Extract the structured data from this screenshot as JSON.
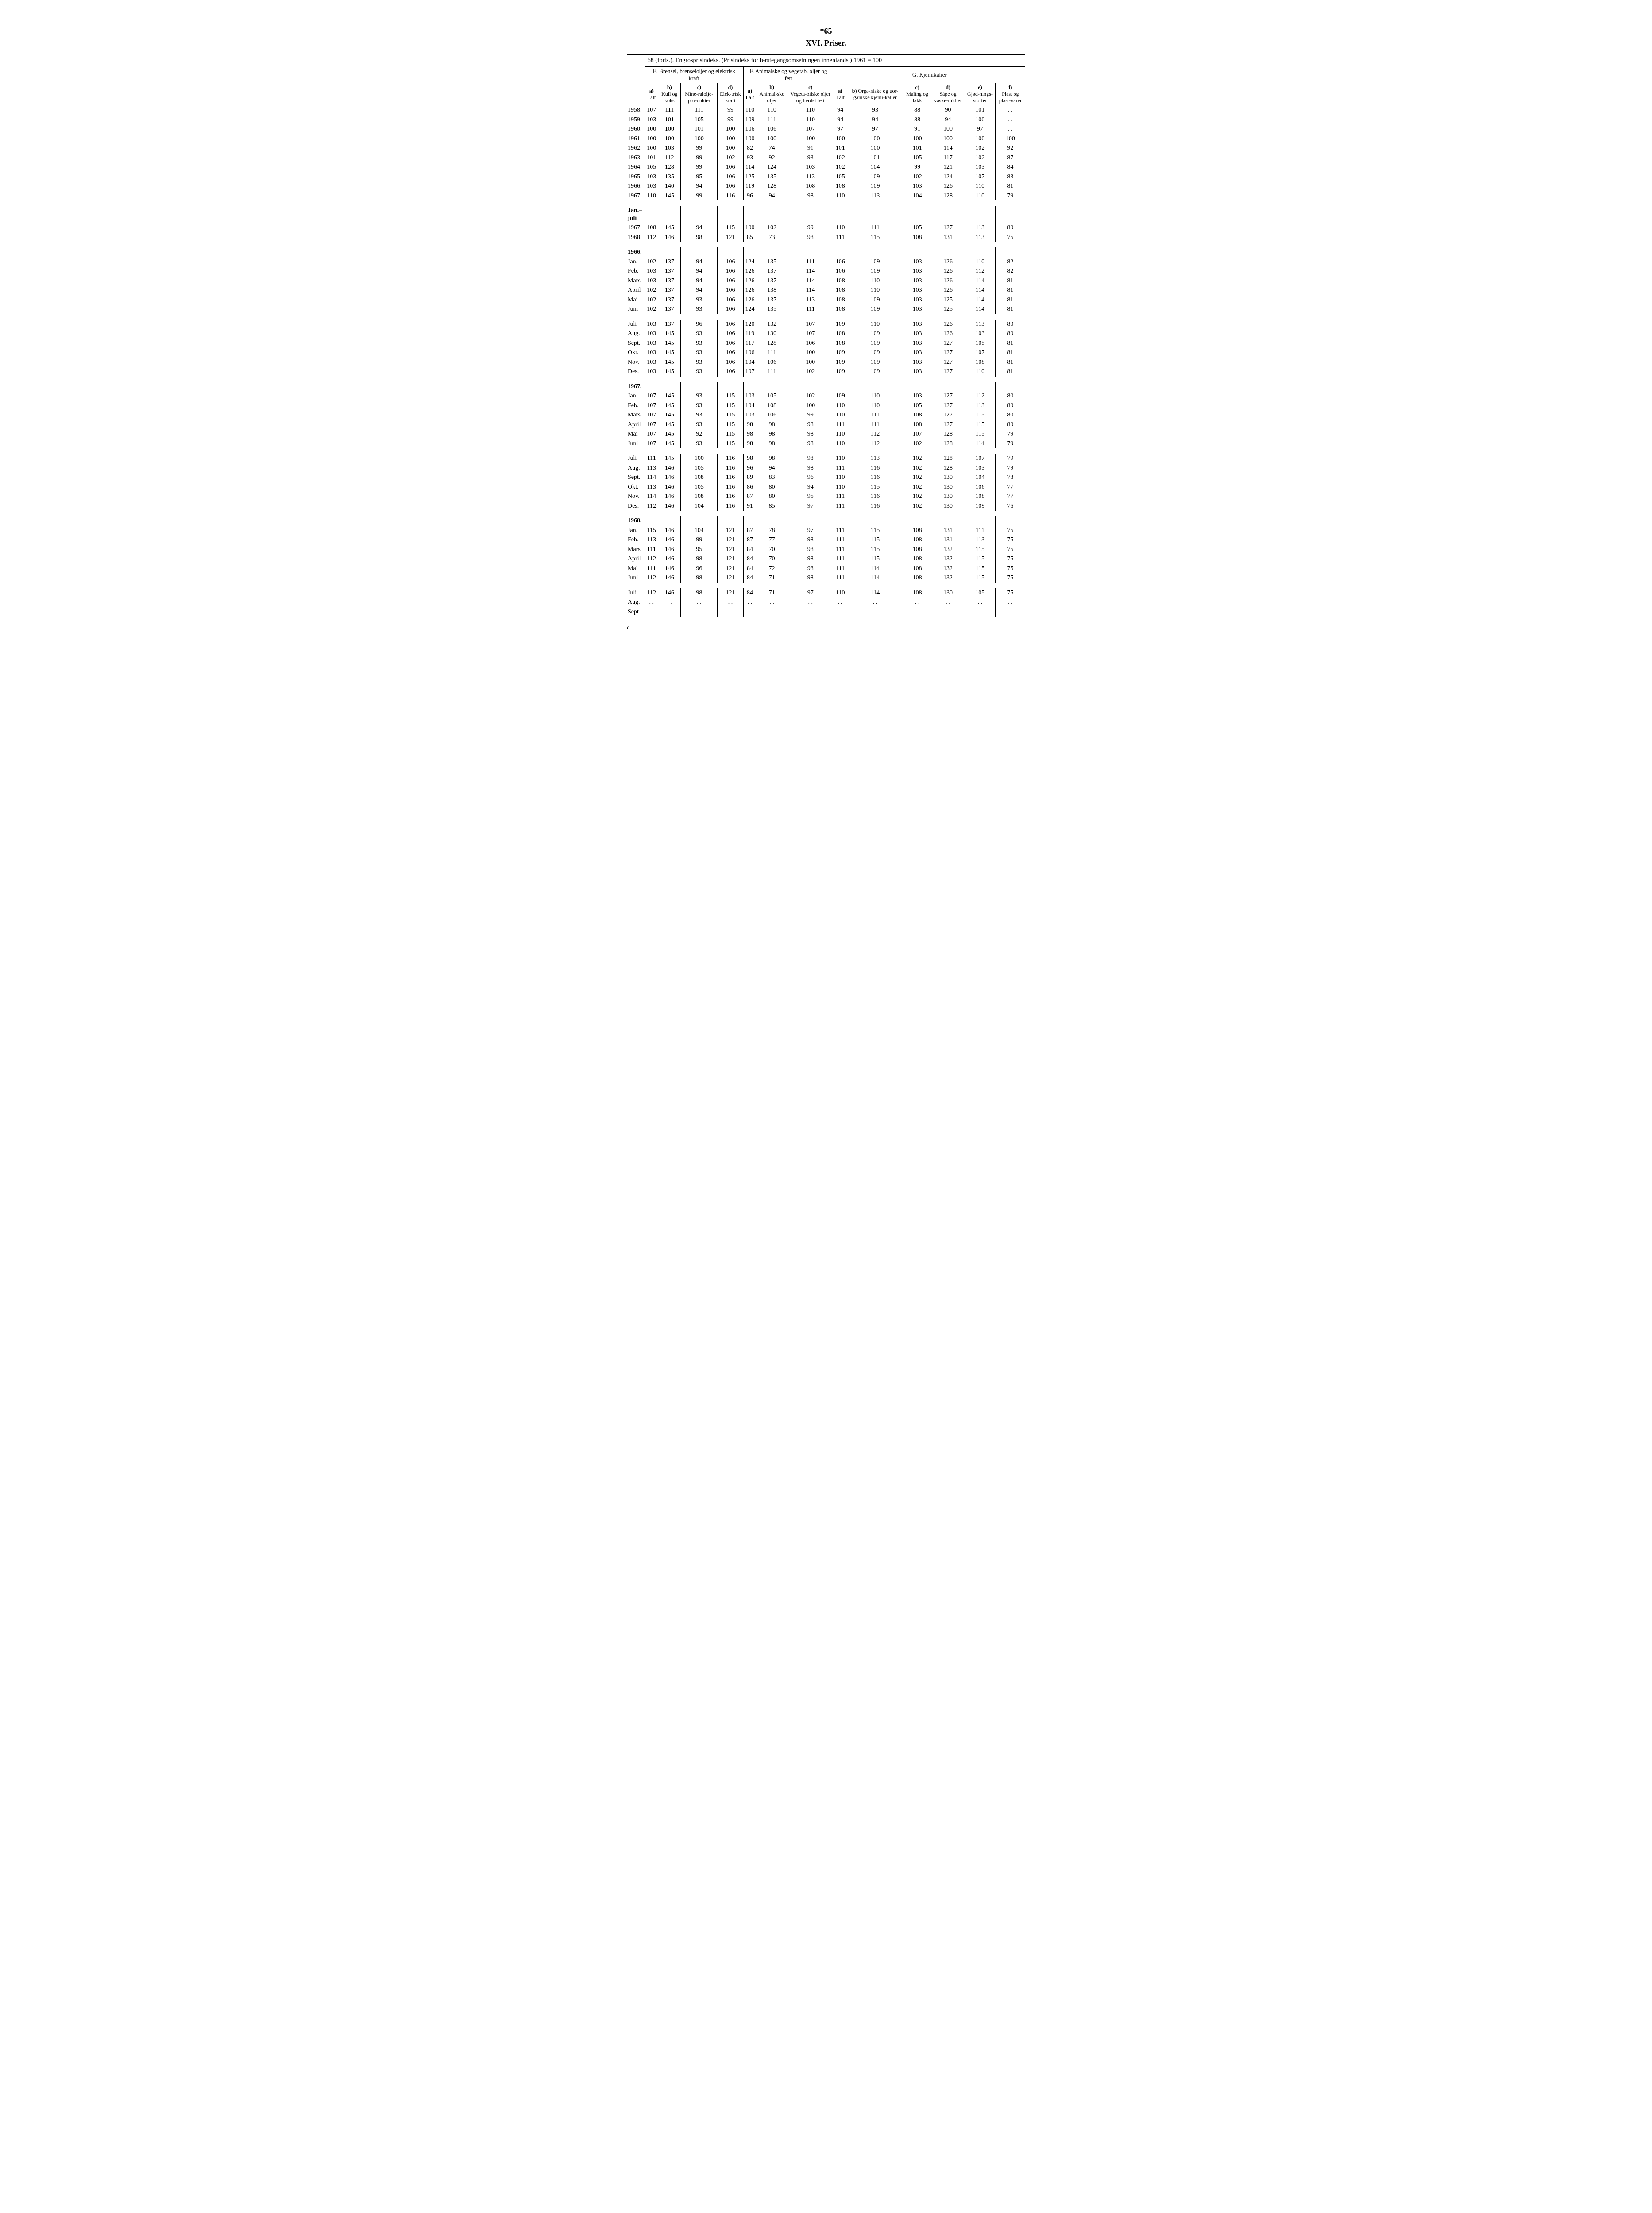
{
  "page_number": "*65",
  "title": "XVI. Priser.",
  "caption": "68 (forts.). Engrosprisindeks. (Prisindeks for førstegangsomsetningen innenlands.) 1961 = 100",
  "footer": "e",
  "groupE": {
    "title": "E. Brensel, brenseloljer og elektrisk kraft",
    "cols": {
      "a": "a)\nI alt",
      "b": "b)\nKull og koks",
      "c": "c)\nMine-ralolje-pro-dukter",
      "d": "d)\nElek-trisk kraft"
    }
  },
  "groupF": {
    "title": "F. Animalske og vegetab. oljer og fett",
    "cols": {
      "a": "a)\nI alt",
      "b": "b)\nAnimal-ske oljer",
      "c": "c)\nVegeta-bilske oljer og herdet fett"
    }
  },
  "groupG": {
    "title": "G. Kjemikalier",
    "cols": {
      "a": "a)\nI alt",
      "b": "b) Orga-niske og uor-ganiske kjemi-kalier",
      "c": "c)\nMaling og lakk",
      "d": "d)\nSåpe og vaske-midler",
      "e": "e)\nGjød-nings-stoffer",
      "f": "f)\nPlast og plast-varer"
    }
  },
  "sections": [
    {
      "year_header": null,
      "rows": [
        {
          "label": "1958.",
          "v": [
            "107",
            "111",
            "111",
            "99",
            "110",
            "110",
            "110",
            "94",
            "93",
            "88",
            "90",
            "101",
            ". ."
          ]
        },
        {
          "label": "1959.",
          "v": [
            "103",
            "101",
            "105",
            "99",
            "109",
            "111",
            "110",
            "94",
            "94",
            "88",
            "94",
            "100",
            ". ."
          ]
        },
        {
          "label": "1960.",
          "v": [
            "100",
            "100",
            "101",
            "100",
            "106",
            "106",
            "107",
            "97",
            "97",
            "91",
            "100",
            "97",
            ". ."
          ]
        },
        {
          "label": "1961.",
          "v": [
            "100",
            "100",
            "100",
            "100",
            "100",
            "100",
            "100",
            "100",
            "100",
            "100",
            "100",
            "100",
            "100"
          ]
        },
        {
          "label": "1962.",
          "v": [
            "100",
            "103",
            "99",
            "100",
            "82",
            "74",
            "91",
            "101",
            "100",
            "101",
            "114",
            "102",
            "92"
          ]
        },
        {
          "label": "1963.",
          "v": [
            "101",
            "112",
            "99",
            "102",
            "93",
            "92",
            "93",
            "102",
            "101",
            "105",
            "117",
            "102",
            "87"
          ]
        },
        {
          "label": "1964.",
          "v": [
            "105",
            "128",
            "99",
            "106",
            "114",
            "124",
            "103",
            "102",
            "104",
            "99",
            "121",
            "103",
            "84"
          ]
        },
        {
          "label": "1965.",
          "v": [
            "103",
            "135",
            "95",
            "106",
            "125",
            "135",
            "113",
            "105",
            "109",
            "102",
            "124",
            "107",
            "83"
          ]
        },
        {
          "label": "1966.",
          "v": [
            "103",
            "140",
            "94",
            "106",
            "119",
            "128",
            "108",
            "108",
            "109",
            "103",
            "126",
            "110",
            "81"
          ]
        },
        {
          "label": "1967.",
          "v": [
            "110",
            "145",
            "99",
            "116",
            "96",
            "94",
            "98",
            "110",
            "113",
            "104",
            "128",
            "110",
            "79"
          ]
        }
      ]
    },
    {
      "year_header": "Jan.–\njuli",
      "rows": [
        {
          "label": "1967.",
          "v": [
            "108",
            "145",
            "94",
            "115",
            "100",
            "102",
            "99",
            "110",
            "111",
            "105",
            "127",
            "113",
            "80"
          ]
        },
        {
          "label": "1968.",
          "v": [
            "112",
            "146",
            "98",
            "121",
            "85",
            "73",
            "98",
            "111",
            "115",
            "108",
            "131",
            "113",
            "75"
          ]
        }
      ]
    },
    {
      "year_header": "1966.",
      "rows": [
        {
          "label": "Jan.",
          "v": [
            "102",
            "137",
            "94",
            "106",
            "124",
            "135",
            "111",
            "106",
            "109",
            "103",
            "126",
            "110",
            "82"
          ]
        },
        {
          "label": "Feb.",
          "v": [
            "103",
            "137",
            "94",
            "106",
            "126",
            "137",
            "114",
            "106",
            "109",
            "103",
            "126",
            "112",
            "82"
          ]
        },
        {
          "label": "Mars",
          "v": [
            "103",
            "137",
            "94",
            "106",
            "126",
            "137",
            "114",
            "108",
            "110",
            "103",
            "126",
            "114",
            "81"
          ]
        },
        {
          "label": "April",
          "v": [
            "102",
            "137",
            "94",
            "106",
            "126",
            "138",
            "114",
            "108",
            "110",
            "103",
            "126",
            "114",
            "81"
          ]
        },
        {
          "label": "Mai",
          "v": [
            "102",
            "137",
            "93",
            "106",
            "126",
            "137",
            "113",
            "108",
            "109",
            "103",
            "125",
            "114",
            "81"
          ]
        },
        {
          "label": "Juni",
          "v": [
            "102",
            "137",
            "93",
            "106",
            "124",
            "135",
            "111",
            "108",
            "109",
            "103",
            "125",
            "114",
            "81"
          ]
        }
      ]
    },
    {
      "year_header": null,
      "rows": [
        {
          "label": "Juli",
          "v": [
            "103",
            "137",
            "96",
            "106",
            "120",
            "132",
            "107",
            "109",
            "110",
            "103",
            "126",
            "113",
            "80"
          ]
        },
        {
          "label": "Aug.",
          "v": [
            "103",
            "145",
            "93",
            "106",
            "119",
            "130",
            "107",
            "108",
            "109",
            "103",
            "126",
            "103",
            "80"
          ]
        },
        {
          "label": "Sept.",
          "v": [
            "103",
            "145",
            "93",
            "106",
            "117",
            "128",
            "106",
            "108",
            "109",
            "103",
            "127",
            "105",
            "81"
          ]
        },
        {
          "label": "Okt.",
          "v": [
            "103",
            "145",
            "93",
            "106",
            "106",
            "111",
            "100",
            "109",
            "109",
            "103",
            "127",
            "107",
            "81"
          ]
        },
        {
          "label": "Nov.",
          "v": [
            "103",
            "145",
            "93",
            "106",
            "104",
            "106",
            "100",
            "109",
            "109",
            "103",
            "127",
            "108",
            "81"
          ]
        },
        {
          "label": "Des.",
          "v": [
            "103",
            "145",
            "93",
            "106",
            "107",
            "111",
            "102",
            "109",
            "109",
            "103",
            "127",
            "110",
            "81"
          ]
        }
      ]
    },
    {
      "year_header": "1967.",
      "rows": [
        {
          "label": "Jan.",
          "v": [
            "107",
            "145",
            "93",
            "115",
            "103",
            "105",
            "102",
            "109",
            "110",
            "103",
            "127",
            "112",
            "80"
          ]
        },
        {
          "label": "Feb.",
          "v": [
            "107",
            "145",
            "93",
            "115",
            "104",
            "108",
            "100",
            "110",
            "110",
            "105",
            "127",
            "113",
            "80"
          ]
        },
        {
          "label": "Mars",
          "v": [
            "107",
            "145",
            "93",
            "115",
            "103",
            "106",
            "99",
            "110",
            "111",
            "108",
            "127",
            "115",
            "80"
          ]
        },
        {
          "label": "April",
          "v": [
            "107",
            "145",
            "93",
            "115",
            "98",
            "98",
            "98",
            "111",
            "111",
            "108",
            "127",
            "115",
            "80"
          ]
        },
        {
          "label": "Mai",
          "v": [
            "107",
            "145",
            "92",
            "115",
            "98",
            "98",
            "98",
            "110",
            "112",
            "107",
            "128",
            "115",
            "79"
          ]
        },
        {
          "label": "Juni",
          "v": [
            "107",
            "145",
            "93",
            "115",
            "98",
            "98",
            "98",
            "110",
            "112",
            "102",
            "128",
            "114",
            "79"
          ]
        }
      ]
    },
    {
      "year_header": null,
      "rows": [
        {
          "label": "Juli",
          "v": [
            "111",
            "145",
            "100",
            "116",
            "98",
            "98",
            "98",
            "110",
            "113",
            "102",
            "128",
            "107",
            "79"
          ]
        },
        {
          "label": "Aug.",
          "v": [
            "113",
            "146",
            "105",
            "116",
            "96",
            "94",
            "98",
            "111",
            "116",
            "102",
            "128",
            "103",
            "79"
          ]
        },
        {
          "label": "Sept.",
          "v": [
            "114",
            "146",
            "108",
            "116",
            "89",
            "83",
            "96",
            "110",
            "116",
            "102",
            "130",
            "104",
            "78"
          ]
        },
        {
          "label": "Okt.",
          "v": [
            "113",
            "146",
            "105",
            "116",
            "86",
            "80",
            "94",
            "110",
            "115",
            "102",
            "130",
            "106",
            "77"
          ]
        },
        {
          "label": "Nov.",
          "v": [
            "114",
            "146",
            "108",
            "116",
            "87",
            "80",
            "95",
            "111",
            "116",
            "102",
            "130",
            "108",
            "77"
          ]
        },
        {
          "label": "Des.",
          "v": [
            "112",
            "146",
            "104",
            "116",
            "91",
            "85",
            "97",
            "111",
            "116",
            "102",
            "130",
            "109",
            "76"
          ]
        }
      ]
    },
    {
      "year_header": "1968.",
      "rows": [
        {
          "label": "Jan.",
          "v": [
            "115",
            "146",
            "104",
            "121",
            "87",
            "78",
            "97",
            "111",
            "115",
            "108",
            "131",
            "111",
            "75"
          ]
        },
        {
          "label": "Feb.",
          "v": [
            "113",
            "146",
            "99",
            "121",
            "87",
            "77",
            "98",
            "111",
            "115",
            "108",
            "131",
            "113",
            "75"
          ]
        },
        {
          "label": "Mars",
          "v": [
            "111",
            "146",
            "95",
            "121",
            "84",
            "70",
            "98",
            "111",
            "115",
            "108",
            "132",
            "115",
            "75"
          ]
        },
        {
          "label": "April",
          "v": [
            "112",
            "146",
            "98",
            "121",
            "84",
            "70",
            "98",
            "111",
            "115",
            "108",
            "132",
            "115",
            "75"
          ]
        },
        {
          "label": "Mai",
          "v": [
            "111",
            "146",
            "96",
            "121",
            "84",
            "72",
            "98",
            "111",
            "114",
            "108",
            "132",
            "115",
            "75"
          ]
        },
        {
          "label": "Juni",
          "v": [
            "112",
            "146",
            "98",
            "121",
            "84",
            "71",
            "98",
            "111",
            "114",
            "108",
            "132",
            "115",
            "75"
          ]
        }
      ]
    },
    {
      "year_header": null,
      "rows": [
        {
          "label": "Juli",
          "v": [
            "112",
            "146",
            "98",
            "121",
            "84",
            "71",
            "97",
            "110",
            "114",
            "108",
            "130",
            "105",
            "75"
          ]
        },
        {
          "label": "Aug.",
          "v": [
            ". .",
            ". .",
            ". .",
            ". .",
            ". .",
            ". .",
            ". .",
            ". .",
            ". .",
            ". .",
            ". .",
            ". .",
            ". ."
          ]
        },
        {
          "label": "Sept.",
          "v": [
            ". .",
            ". .",
            ". .",
            ". .",
            ". .",
            ". .",
            ". .",
            ". .",
            ". .",
            ". .",
            ". .",
            ". .",
            ". ."
          ]
        }
      ]
    }
  ]
}
